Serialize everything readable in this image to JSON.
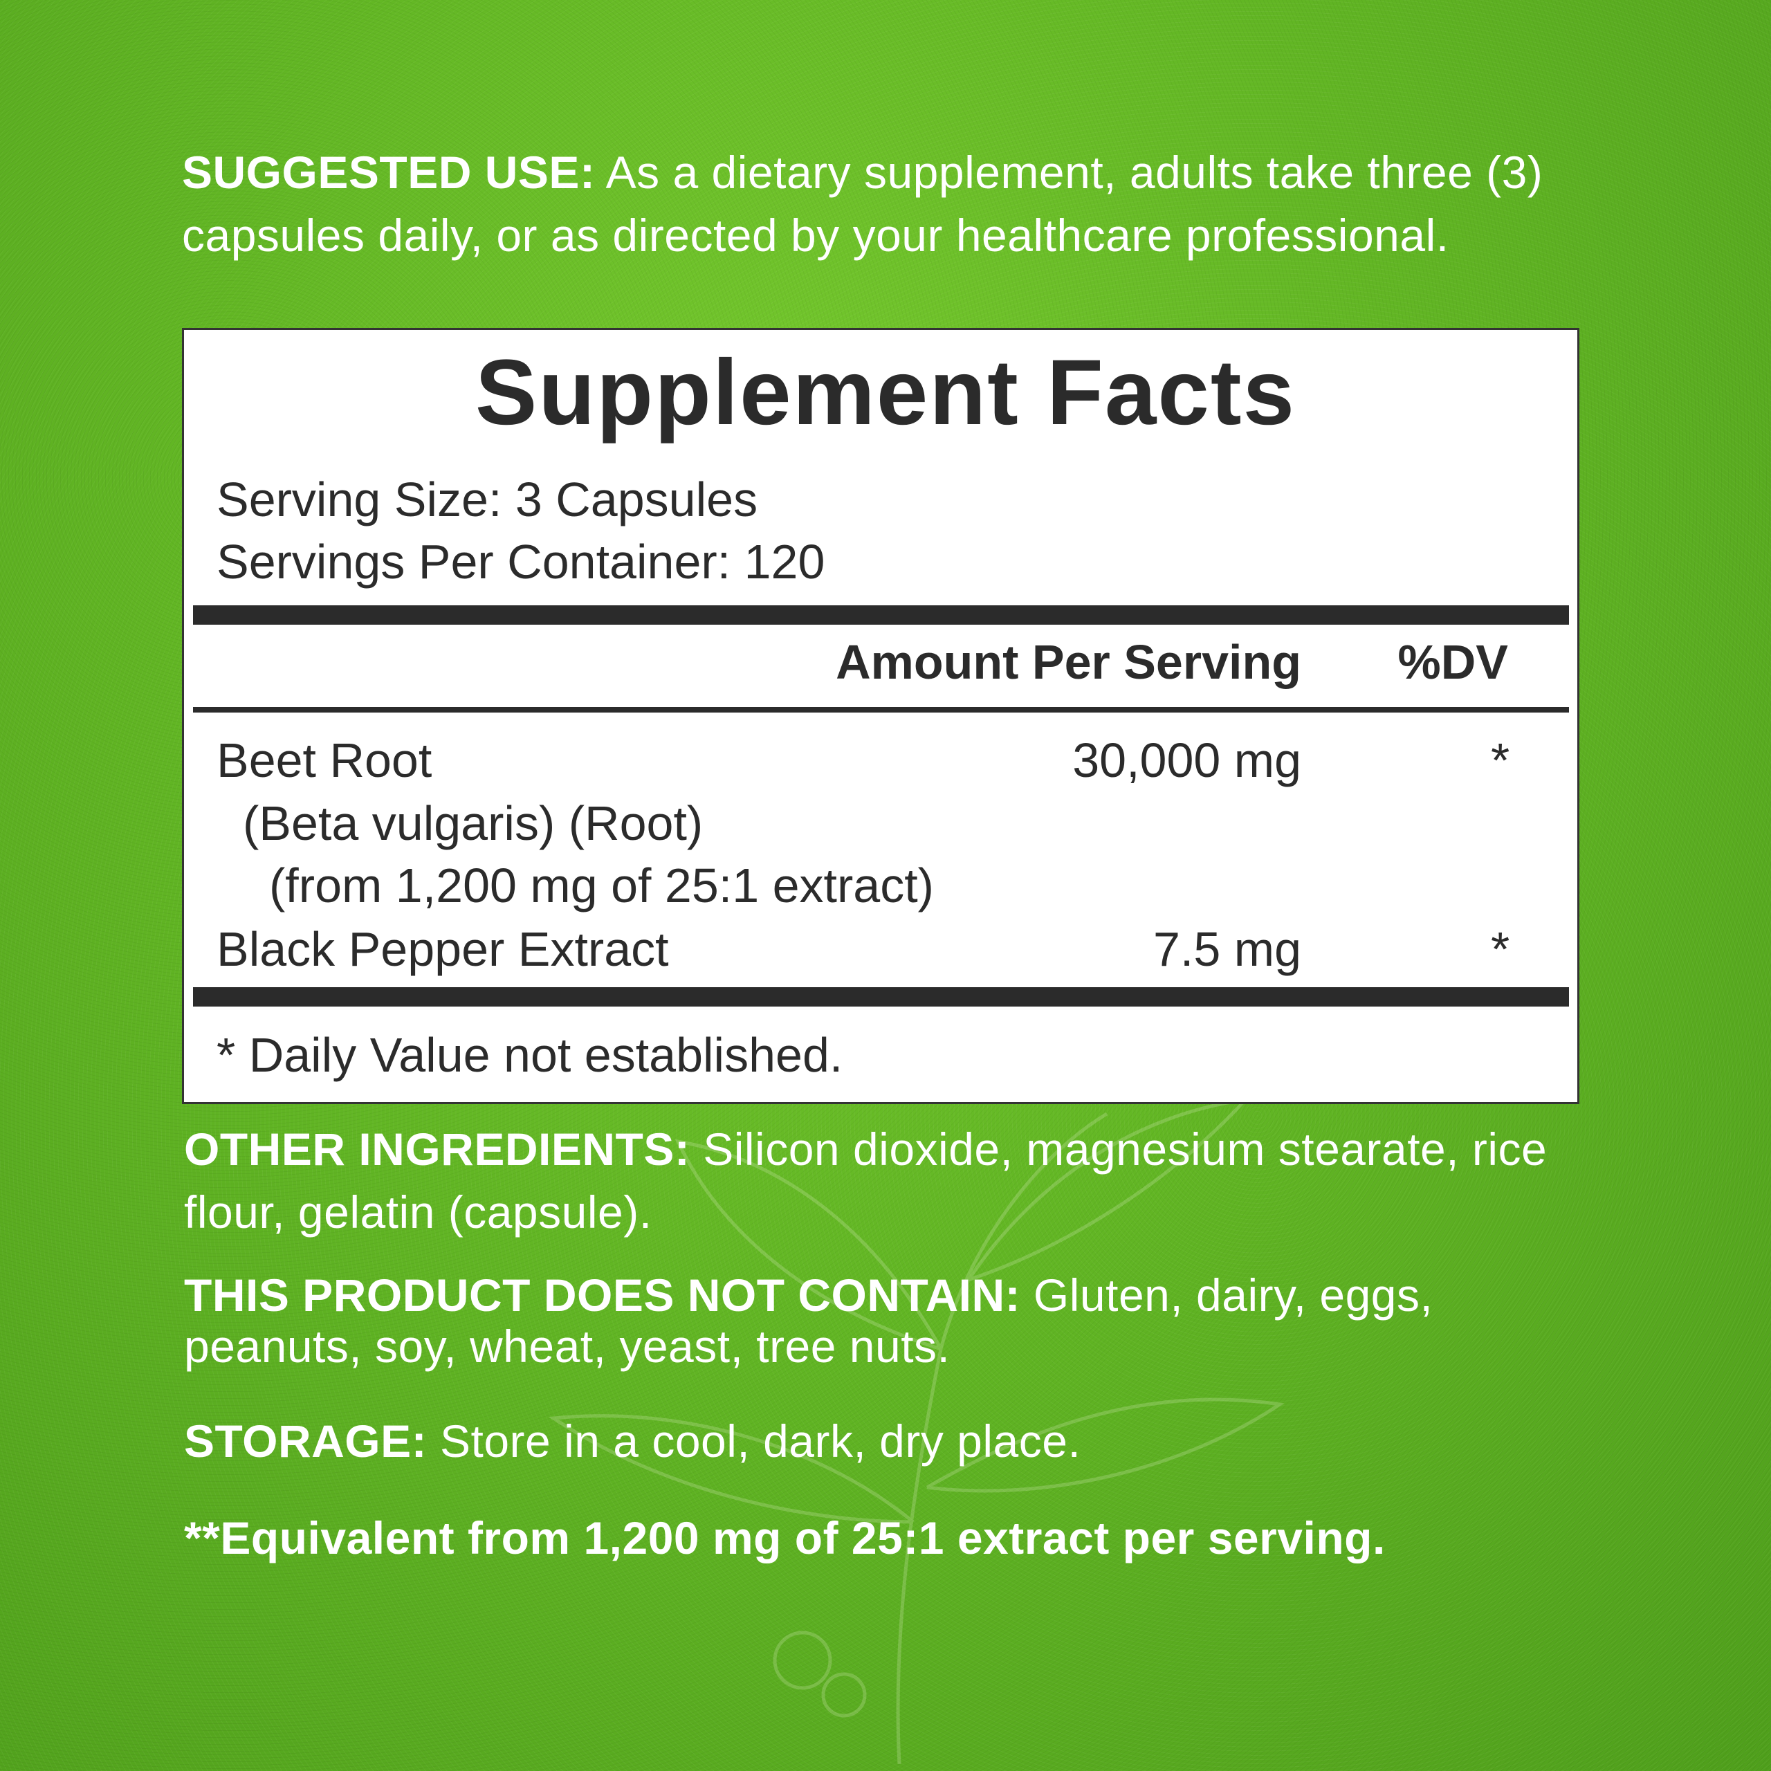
{
  "suggested_use": {
    "label": "SUGGESTED USE:",
    "text": " As a dietary supplement, adults take three (3) capsules daily, or as directed by your healthcare professional."
  },
  "facts": {
    "title": "Supplement Facts",
    "serving_size": "Serving Size: 3 Capsules",
    "servings_per_container": "Servings Per Container: 120",
    "header_amount": "Amount Per Serving",
    "header_dv": "%DV",
    "rows": [
      {
        "name": "Beet Root",
        "sub1": "(Beta vulgaris) (Root)",
        "sub2": "(from 1,200 mg of 25:1 extract)",
        "amount": "30,000 mg",
        "dv": "*"
      },
      {
        "name": "Black Pepper Extract",
        "amount": "7.5 mg",
        "dv": "*"
      }
    ],
    "footnote": "* Daily Value not established."
  },
  "other_ingredients": {
    "label": "OTHER INGREDIENTS:",
    "text": " Silicon dioxide, magnesium stearate, rice flour, gelatin (capsule)."
  },
  "does_not_contain": {
    "label": "THIS PRODUCT DOES NOT CONTAIN:",
    "text": " Gluten, dairy, eggs, peanuts, soy, wheat, yeast, tree nuts."
  },
  "storage": {
    "label": "STORAGE:",
    "text": " Store in a cool, dark, dry place."
  },
  "equivalent_note": "**Equivalent from 1,200 mg of 25:1 extract per serving.",
  "colors": {
    "background": "#62b624",
    "text": "#ffffff",
    "label_text": "#2b2b2b"
  }
}
